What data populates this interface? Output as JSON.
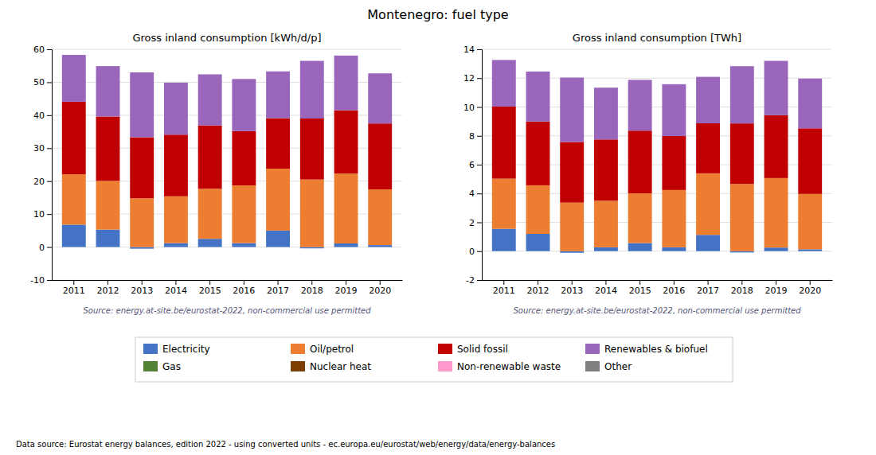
{
  "title": "Montenegro: fuel type",
  "annotations": [
    "Data source: Eurostat energy balances, edition 2022 - using converted units - ec.europa.eu/eurostat/web/energy/data/energy-balances"
  ],
  "chart_data": [
    {
      "type": "bar",
      "stacked": true,
      "grid": true,
      "legend": "bottom",
      "title": "Gross inland consumption [kWh/d/p]",
      "annotations": [
        "Source: energy.at-site.be/eurostat-2022, non-commercial use permitted"
      ],
      "categories": [
        "2011",
        "2012",
        "2013",
        "2014",
        "2015",
        "2016",
        "2017",
        "2018",
        "2019",
        "2020"
      ],
      "ylim": [
        -10,
        60
      ],
      "yticks": [
        -10,
        0,
        10,
        20,
        30,
        40,
        50,
        60
      ],
      "series": [
        {
          "name": "Electricity",
          "color": "#4472c4",
          "values": [
            6.8,
            5.3,
            -0.5,
            1.2,
            2.5,
            1.2,
            5.0,
            -0.4,
            1.1,
            0.6
          ]
        },
        {
          "name": "Oil/petrol",
          "color": "#ed7d31",
          "values": [
            15.3,
            14.8,
            14.8,
            14.2,
            15.2,
            17.5,
            18.8,
            20.5,
            21.2,
            16.9
          ]
        },
        {
          "name": "Solid fossil",
          "color": "#c00000",
          "values": [
            22.0,
            19.5,
            18.5,
            18.7,
            19.2,
            16.5,
            15.3,
            18.5,
            19.2,
            20.0
          ]
        },
        {
          "name": "Renewables & biofuel",
          "color": "#9966bb",
          "values": [
            14.2,
            15.3,
            19.7,
            15.8,
            15.5,
            15.8,
            14.2,
            17.5,
            16.6,
            15.2
          ]
        },
        {
          "name": "Gas",
          "color": "#548235",
          "values": [
            0.0,
            0.0,
            0.0,
            0.0,
            0.0,
            0.0,
            0.0,
            0.0,
            0.0,
            0.0
          ]
        },
        {
          "name": "Nuclear heat",
          "color": "#7b3f00",
          "values": [
            0.0,
            0.0,
            0.0,
            0.0,
            0.0,
            0.0,
            0.0,
            0.0,
            0.0,
            0.0
          ]
        },
        {
          "name": "Non-renewable waste",
          "color": "#ff99cc",
          "values": [
            0.0,
            0.0,
            0.0,
            0.0,
            0.0,
            0.0,
            0.0,
            0.0,
            0.0,
            0.0
          ]
        },
        {
          "name": "Other",
          "color": "#808080",
          "values": [
            0.0,
            0.0,
            0.0,
            0.0,
            0.0,
            0.0,
            0.0,
            0.0,
            0.0,
            0.0
          ]
        }
      ]
    },
    {
      "type": "bar",
      "stacked": true,
      "grid": true,
      "title": "Gross inland consumption [TWh]",
      "annotations": [
        "Source: energy.at-site.be/eurostat-2022, non-commercial use permitted"
      ],
      "categories": [
        "2011",
        "2012",
        "2013",
        "2014",
        "2015",
        "2016",
        "2017",
        "2018",
        "2019",
        "2020"
      ],
      "ylim": [
        -2,
        14
      ],
      "yticks": [
        -2,
        0,
        2,
        4,
        6,
        8,
        10,
        12,
        14
      ],
      "series": [
        {
          "name": "Electricity",
          "color": "#4472c4",
          "values": [
            1.55,
            1.2,
            -0.11,
            0.27,
            0.56,
            0.27,
            1.13,
            -0.09,
            0.25,
            0.13
          ]
        },
        {
          "name": "Oil/petrol",
          "color": "#ed7d31",
          "values": [
            3.48,
            3.37,
            3.37,
            3.23,
            3.45,
            3.97,
            4.27,
            4.66,
            4.82,
            3.84
          ]
        },
        {
          "name": "Solid fossil",
          "color": "#c00000",
          "values": [
            5.0,
            4.42,
            4.2,
            4.25,
            4.35,
            3.75,
            3.47,
            4.2,
            4.36,
            4.55
          ]
        },
        {
          "name": "Renewables & biofuel",
          "color": "#9966bb",
          "values": [
            3.23,
            3.47,
            4.47,
            3.59,
            3.52,
            3.59,
            3.22,
            3.97,
            3.77,
            3.45
          ]
        },
        {
          "name": "Gas",
          "color": "#548235",
          "values": [
            0.0,
            0.0,
            0.0,
            0.0,
            0.0,
            0.0,
            0.0,
            0.0,
            0.0,
            0.0
          ]
        },
        {
          "name": "Nuclear heat",
          "color": "#7b3f00",
          "values": [
            0.0,
            0.0,
            0.0,
            0.0,
            0.0,
            0.0,
            0.0,
            0.0,
            0.0,
            0.0
          ]
        },
        {
          "name": "Non-renewable waste",
          "color": "#ff99cc",
          "values": [
            0.0,
            0.0,
            0.0,
            0.0,
            0.0,
            0.0,
            0.0,
            0.0,
            0.0,
            0.0
          ]
        },
        {
          "name": "Other",
          "color": "#808080",
          "values": [
            0.0,
            0.0,
            0.0,
            0.0,
            0.0,
            0.0,
            0.0,
            0.0,
            0.0,
            0.0
          ]
        }
      ]
    }
  ]
}
